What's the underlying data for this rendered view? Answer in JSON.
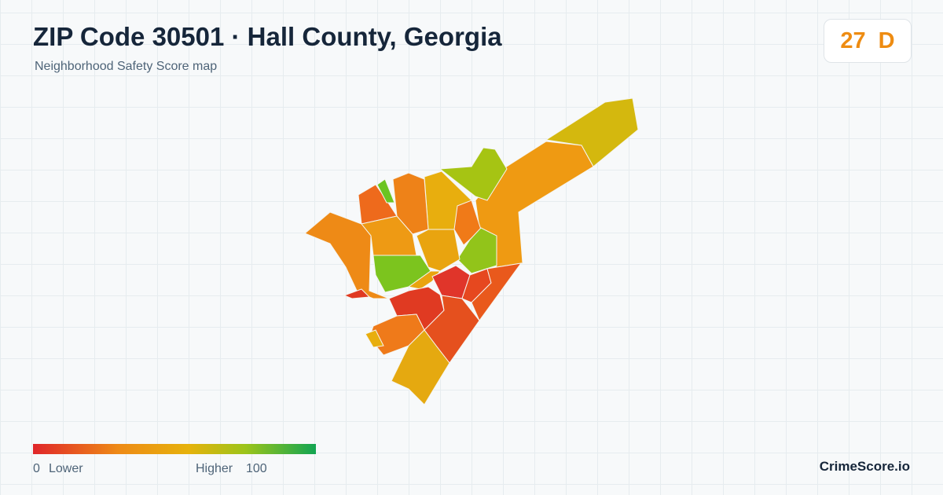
{
  "header": {
    "title": "ZIP Code 30501 · Hall County, Georgia",
    "subtitle": "Neighborhood Safety Score map"
  },
  "score": {
    "value": 27,
    "grade": "D"
  },
  "legend": {
    "min": 0,
    "min_label": "Lower",
    "max_label": "Higher",
    "max": 100
  },
  "brand": "CrimeScore.io"
}
